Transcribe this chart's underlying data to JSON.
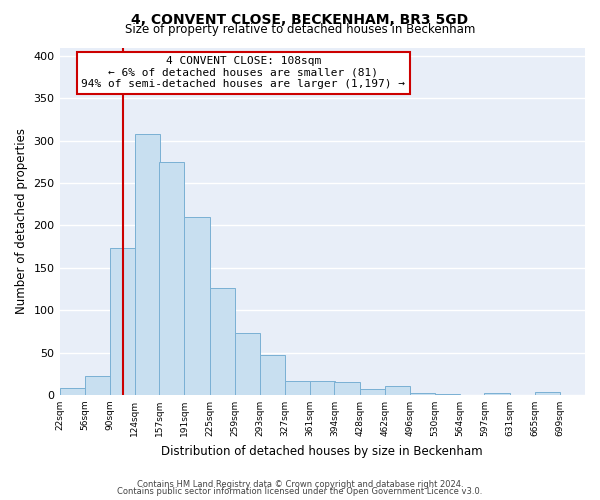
{
  "title": "4, CONVENT CLOSE, BECKENHAM, BR3 5GD",
  "subtitle": "Size of property relative to detached houses in Beckenham",
  "xlabel": "Distribution of detached houses by size in Beckenham",
  "ylabel": "Number of detached properties",
  "bin_labels": [
    "22sqm",
    "56sqm",
    "90sqm",
    "124sqm",
    "157sqm",
    "191sqm",
    "225sqm",
    "259sqm",
    "293sqm",
    "327sqm",
    "361sqm",
    "394sqm",
    "428sqm",
    "462sqm",
    "496sqm",
    "530sqm",
    "564sqm",
    "597sqm",
    "631sqm",
    "665sqm",
    "699sqm"
  ],
  "bar_values": [
    8,
    22,
    173,
    308,
    275,
    210,
    126,
    73,
    47,
    16,
    16,
    15,
    7,
    10,
    2,
    1,
    0,
    2,
    0,
    3
  ],
  "bar_color": "#c8dff0",
  "bar_edge_color": "#7ab0d4",
  "vline_x": 108,
  "annotation_line1": "4 CONVENT CLOSE: 108sqm",
  "annotation_line2": "← 6% of detached houses are smaller (81)",
  "annotation_line3": "94% of semi-detached houses are larger (1,197) →",
  "annotation_box_color": "#ffffff",
  "annotation_box_edge": "#cc0000",
  "vline_color": "#cc0000",
  "ylim": [
    0,
    410
  ],
  "yticks": [
    0,
    50,
    100,
    150,
    200,
    250,
    300,
    350,
    400
  ],
  "footer1": "Contains HM Land Registry data © Crown copyright and database right 2024.",
  "footer2": "Contains public sector information licensed under the Open Government Licence v3.0.",
  "bin_edges": [
    22,
    56,
    90,
    124,
    157,
    191,
    225,
    259,
    293,
    327,
    361,
    394,
    428,
    462,
    496,
    530,
    564,
    597,
    631,
    665,
    699
  ],
  "bg_color": "#e8eef8"
}
